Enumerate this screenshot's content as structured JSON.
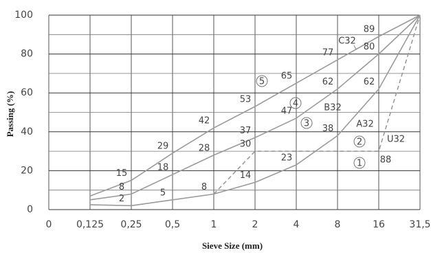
{
  "chart_data": {
    "type": "line",
    "ylabel": "Passing (%)",
    "xlabel": "Sieve Size (mm)",
    "categories": [
      "0",
      "0,125",
      "0,25",
      "0,5",
      "1",
      "2",
      "4",
      "8",
      "16",
      "31,5"
    ],
    "ylim": [
      0,
      100
    ],
    "yticks": [
      0,
      20,
      40,
      60,
      80,
      100
    ],
    "minor_yticks": [
      10,
      30,
      50,
      70,
      90
    ],
    "grid": true,
    "series": [
      {
        "name": "C32",
        "color": "#9a9a9a",
        "dashed": false,
        "values": [
          null,
          7,
          15,
          29,
          42,
          53,
          65,
          77,
          89,
          100
        ],
        "value_labels": [
          null,
          null,
          "15",
          "29",
          "42",
          "53",
          "65",
          "77",
          "89",
          null
        ]
      },
      {
        "name": "B32",
        "color": "#9a9a9a",
        "dashed": false,
        "values": [
          null,
          5,
          8,
          18,
          28,
          37,
          47,
          62,
          80,
          100
        ],
        "value_labels": [
          null,
          null,
          "8",
          "18",
          "28",
          "37",
          "47",
          "62",
          "80",
          null
        ]
      },
      {
        "name": "A32",
        "color": "#9a9a9a",
        "dashed": false,
        "values": [
          null,
          2.5,
          2,
          5,
          8,
          14,
          23,
          38,
          62,
          100
        ],
        "value_labels": [
          null,
          null,
          "2",
          "5",
          "8",
          "14",
          "23",
          "38",
          "62",
          null
        ]
      },
      {
        "name": "U32",
        "color": "#9a9a9a",
        "dashed": true,
        "values": [
          null,
          null,
          null,
          null,
          8,
          30,
          30,
          30,
          30,
          100
        ],
        "value_labels": [
          null,
          null,
          null,
          null,
          null,
          "30",
          null,
          null,
          null,
          null
        ]
      }
    ],
    "annotations": [
      "5",
      "4",
      "3",
      "2",
      "1",
      "88"
    ]
  }
}
